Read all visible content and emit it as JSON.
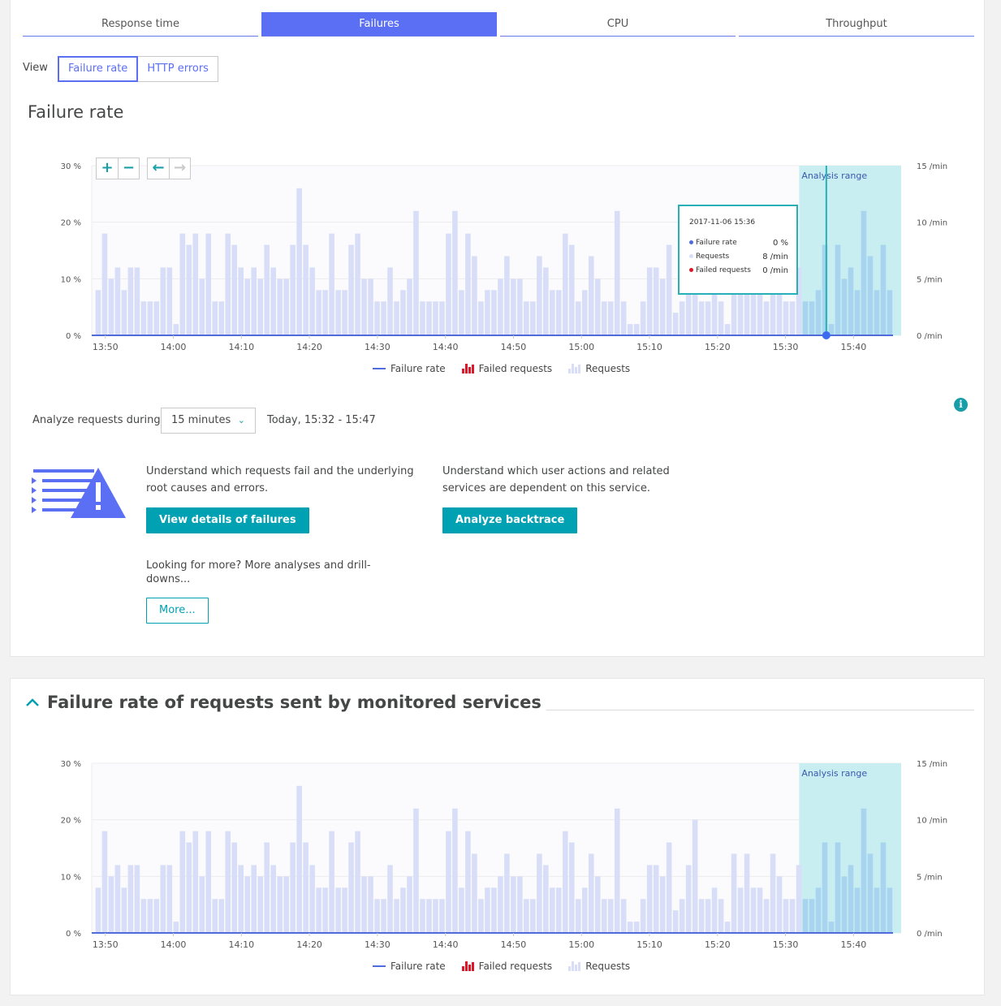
{
  "tabs": [
    {
      "label": "Response time",
      "active": false
    },
    {
      "label": "Failures",
      "active": true
    },
    {
      "label": "CPU",
      "active": false
    },
    {
      "label": "Throughput",
      "active": false
    }
  ],
  "view": {
    "label": "View",
    "options": [
      {
        "label": "Failure rate",
        "selected": true
      },
      {
        "label": "HTTP errors",
        "selected": false
      }
    ]
  },
  "failure_rate_section": {
    "title": "Failure rate"
  },
  "chart_controls": {
    "zoom_in": "+",
    "zoom_out": "−",
    "back": "←",
    "forward": "→"
  },
  "tooltip": {
    "time": "2017-11-06 15:36",
    "rows": [
      {
        "label": "Failure rate",
        "value": "0 %",
        "color": "#4f6bdc"
      },
      {
        "label": "Requests",
        "value": "8 /min",
        "color": "#d9def8"
      },
      {
        "label": "Failed requests",
        "value": "0 /min",
        "color": "#dc172a"
      }
    ]
  },
  "legend": {
    "failure_rate": "Failure rate",
    "failed_requests": "Failed requests",
    "requests": "Requests"
  },
  "analyze": {
    "label": "Analyze requests during",
    "duration": "15 minutes",
    "range": "Today, 15:32 - 15:47"
  },
  "actions": {
    "failures_text": "Understand which requests fail and the underlying root causes and errors.",
    "failures_button": "View details of failures",
    "backtrace_text": "Understand which user actions and related services are dependent on this service.",
    "backtrace_button": "Analyze backtrace",
    "more_text": "Looking for more? More analyses and drill-downs...",
    "more_button": "More..."
  },
  "monitored_section": {
    "title": "Failure rate of requests sent by monitored services"
  },
  "colors": {
    "accent": "#5b6ff5",
    "teal": "#00a1b2",
    "bar": "#d9def8",
    "bar_highlight": "#a8d4ef",
    "analysis_range": "#c8eef1"
  },
  "chart_data": [
    {
      "type": "bar",
      "name": "failure-rate-chart",
      "x_ticks": [
        "13:50",
        "14:00",
        "14:10",
        "14:20",
        "14:30",
        "14:40",
        "14:50",
        "15:00",
        "15:10",
        "15:20",
        "15:30",
        "15:40"
      ],
      "y_left_ticks": [
        "30 %",
        "20 %",
        "10 %",
        "0 %"
      ],
      "y_right_ticks": [
        "15 /min",
        "10 /min",
        "5 /min",
        "0 /min"
      ],
      "y_right_range": [
        0,
        15
      ],
      "y_left_range": [
        0,
        30
      ],
      "x_start": "13:48",
      "x_end": "15:47",
      "analysis_range": {
        "label": "Analysis range",
        "from": "15:32",
        "to": "15:47"
      },
      "cursor": {
        "time": "15:36",
        "failure_rate": 0
      },
      "series": [
        {
          "name": "Requests",
          "unit": "/min",
          "values": [
            4,
            9,
            5,
            6,
            4,
            6,
            6,
            3,
            3,
            3,
            6,
            6,
            1,
            9,
            8,
            9,
            5,
            9,
            3,
            3,
            9,
            8,
            6,
            5,
            6,
            5,
            8,
            6,
            5,
            5,
            8,
            13,
            8,
            6,
            4,
            4,
            9,
            4,
            4,
            8,
            9,
            5,
            5,
            3,
            3,
            6,
            3,
            4,
            5,
            11,
            3,
            3,
            3,
            3,
            9,
            11,
            4,
            9,
            7,
            3,
            4,
            4,
            5,
            7,
            5,
            5,
            3,
            3,
            7,
            6,
            4,
            4,
            9,
            8,
            3,
            4,
            7,
            5,
            3,
            3,
            11,
            3,
            1,
            1,
            3,
            6,
            6,
            5,
            8,
            2,
            3,
            6,
            10,
            3,
            3,
            4,
            3,
            1,
            7,
            4,
            7,
            4,
            4,
            3,
            7,
            5,
            3,
            3,
            6,
            3,
            3,
            4,
            8,
            1,
            8,
            5,
            6,
            4,
            11,
            7,
            4,
            8,
            4
          ]
        },
        {
          "name": "Failed requests",
          "unit": "/min",
          "values": []
        },
        {
          "name": "Failure rate",
          "unit": "%",
          "values": [
            0
          ]
        }
      ]
    },
    {
      "type": "bar",
      "name": "monitored-services-chart",
      "x_ticks": [
        "13:50",
        "14:00",
        "14:10",
        "14:20",
        "14:30",
        "14:40",
        "14:50",
        "15:00",
        "15:10",
        "15:20",
        "15:30",
        "15:40"
      ],
      "y_left_ticks": [
        "30 %",
        "20 %",
        "10 %",
        "0 %"
      ],
      "y_right_ticks": [
        "15 /min",
        "10 /min",
        "5 /min",
        "0 /min"
      ],
      "y_right_range": [
        0,
        15
      ],
      "y_left_range": [
        0,
        30
      ],
      "x_start": "13:48",
      "x_end": "15:47",
      "analysis_range": {
        "label": "Analysis range",
        "from": "15:32",
        "to": "15:47"
      },
      "series": [
        {
          "name": "Requests",
          "unit": "/min",
          "values": [
            4,
            9,
            5,
            6,
            4,
            6,
            6,
            3,
            3,
            3,
            6,
            6,
            1,
            9,
            8,
            9,
            5,
            9,
            3,
            3,
            9,
            8,
            6,
            5,
            6,
            5,
            8,
            6,
            5,
            5,
            8,
            13,
            8,
            6,
            4,
            4,
            9,
            4,
            4,
            8,
            9,
            5,
            5,
            3,
            3,
            6,
            3,
            4,
            5,
            11,
            3,
            3,
            3,
            3,
            9,
            11,
            4,
            9,
            7,
            3,
            4,
            4,
            5,
            7,
            5,
            5,
            3,
            3,
            7,
            6,
            4,
            4,
            9,
            8,
            3,
            4,
            7,
            5,
            3,
            3,
            11,
            3,
            1,
            1,
            3,
            6,
            6,
            5,
            8,
            2,
            3,
            6,
            10,
            3,
            3,
            4,
            3,
            1,
            7,
            4,
            7,
            4,
            4,
            3,
            7,
            5,
            3,
            3,
            6,
            3,
            3,
            4,
            8,
            1,
            8,
            5,
            6,
            4,
            11,
            7,
            4,
            8,
            4
          ]
        },
        {
          "name": "Failed requests",
          "unit": "/min",
          "values": []
        },
        {
          "name": "Failure rate",
          "unit": "%",
          "values": [
            0
          ]
        }
      ]
    }
  ]
}
